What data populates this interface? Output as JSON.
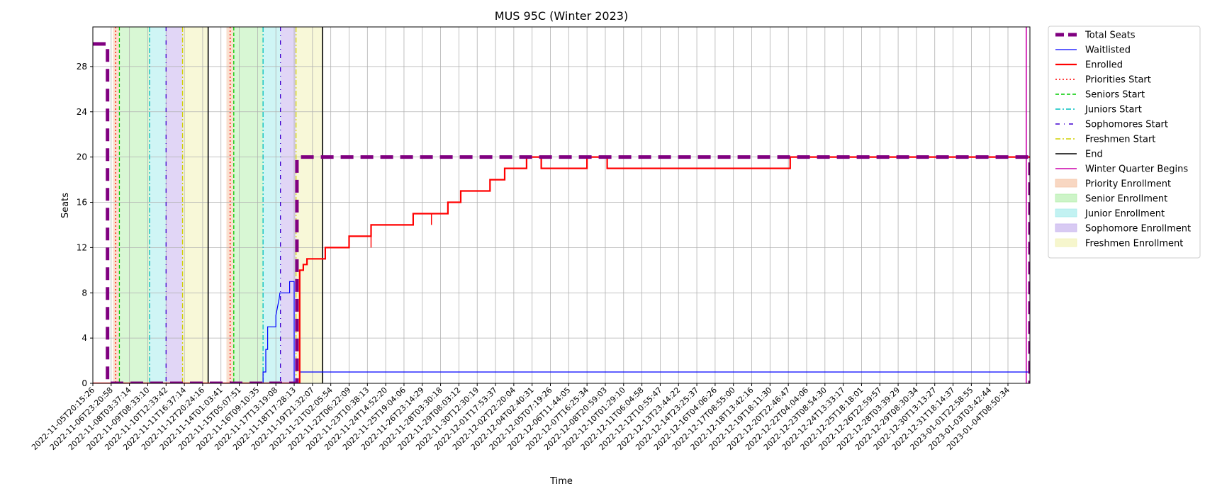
{
  "chart_data": {
    "type": "line",
    "title": "MUS 95C (Winter 2023)",
    "xlabel": "Time",
    "ylabel": "Seats",
    "ylim": [
      0,
      31.5
    ],
    "y_ticks": [
      0,
      4,
      8,
      12,
      16,
      20,
      24,
      28
    ],
    "grid": true,
    "legend_placement": "outside-right-top",
    "x_ticks": [
      "2022-11-05T20:15:26",
      "2022-11-06T23:20:58",
      "2022-11-08T03:37:14",
      "2022-11-09T08:33:10",
      "2022-11-10T12:33:42",
      "2022-11-11T16:37:14",
      "2022-11-12T20:24:16",
      "2022-11-14T01:03:41",
      "2022-11-15T05:07:51",
      "2022-11-16T09:10:35",
      "2022-11-17T13:19:08",
      "2022-11-18T17:28:13",
      "2022-11-19T21:32:07",
      "2022-11-21T02:05:54",
      "2022-11-22T06:22:09",
      "2022-11-23T10:38:13",
      "2022-11-24T14:52:20",
      "2022-11-25T19:04:06",
      "2022-11-26T23:14:29",
      "2022-11-28T03:30:18",
      "2022-11-29T08:03:12",
      "2022-11-30T12:30:19",
      "2022-12-01T17:53:37",
      "2022-12-02T22:20:04",
      "2022-12-04T02:40:31",
      "2022-12-05T07:19:26",
      "2022-12-06T11:44:05",
      "2022-12-07T16:25:34",
      "2022-12-08T20:59:03",
      "2022-12-10T01:29:10",
      "2022-12-11T06:04:58",
      "2022-12-12T10:55:47",
      "2022-12-13T23:44:22",
      "2022-12-14T23:25:37",
      "2022-12-16T04:06:26",
      "2022-12-17T08:55:00",
      "2022-12-18T13:42:16",
      "2022-12-19T18:11:30",
      "2022-12-20T22:46:47",
      "2022-12-22T04:04:06",
      "2022-12-23T08:54:30",
      "2022-12-24T13:33:17",
      "2022-12-25T18:18:01",
      "2022-12-26T22:59:57",
      "2022-12-28T03:39:29",
      "2022-12-29T08:30:34",
      "2022-12-30T13:13:27",
      "2022-12-31T18:14:37",
      "2023-01-01T22:58:55",
      "2023-01-03T03:42:44",
      "2023-01-04T08:50:34"
    ],
    "x_range": [
      0,
      51.2
    ],
    "series": [
      {
        "name": "Total Seats",
        "color": "#800080",
        "style": "dashed-thick",
        "x": [
          0,
          0.8,
          0.8,
          11.15,
          11.15,
          51.2,
          51.2
        ],
        "y": [
          30,
          30,
          0,
          0,
          20,
          20,
          0
        ]
      },
      {
        "name": "Waitlisted",
        "color": "#0000ff",
        "style": "solid-thin",
        "x": [
          0,
          9.3,
          9.3,
          9.45,
          9.45,
          9.55,
          9.55,
          10.0,
          10.0,
          10.12,
          10.18,
          10.22,
          10.25,
          10.75,
          10.75,
          11.0,
          11.0,
          11.3,
          11.3,
          45.0,
          45.0,
          51.2
        ],
        "y": [
          0,
          0,
          1,
          1,
          3,
          3,
          5,
          5,
          6,
          7,
          7.5,
          8,
          8,
          8,
          9,
          9,
          0,
          0,
          1,
          1,
          1,
          1
        ]
      },
      {
        "name": "Enrolled",
        "color": "#ff0000",
        "style": "solid-thick",
        "x": [
          0,
          11.3,
          11.3,
          11.5,
          11.5,
          11.7,
          11.7,
          12.7,
          12.7,
          14.0,
          14.0,
          15.2,
          15.2,
          17.5,
          17.5,
          19.4,
          19.4,
          20.1,
          20.1,
          21.7,
          21.7,
          22.5,
          22.5,
          23.7,
          23.7,
          24.5,
          24.5,
          27.0,
          27.0,
          28.1,
          28.1,
          38.1,
          38.1,
          39.5,
          39.5,
          51.2
        ],
        "y": [
          0,
          0,
          10,
          10,
          10.5,
          10.5,
          11,
          11,
          12,
          12,
          13,
          13,
          14,
          14,
          15,
          15,
          16,
          16,
          17,
          17,
          18,
          18,
          19,
          19,
          20,
          20,
          19,
          19,
          20,
          20,
          19,
          19,
          20,
          20,
          20,
          20
        ]
      }
    ],
    "vertical_lines": [
      {
        "name": "Priorities Start",
        "color": "#ff0000",
        "x": [
          1.25,
          7.5
        ]
      },
      {
        "name": "Seniors Start",
        "color": "#00cc00",
        "x": [
          1.45,
          7.7
        ]
      },
      {
        "name": "Juniors Start",
        "color": "#00bfbf",
        "x": [
          3.1,
          9.3
        ]
      },
      {
        "name": "Sophomores Start",
        "color": "#4000d0",
        "x": [
          4.0,
          10.25
        ]
      },
      {
        "name": "Freshmen Start",
        "color": "#d0d000",
        "x": [
          4.9,
          11.1
        ]
      },
      {
        "name": "End",
        "color": "#000000",
        "x": [
          6.3,
          12.55
        ]
      },
      {
        "name": "Winter Quarter Begins",
        "color": "#cc00aa",
        "x": [
          51.0
        ]
      }
    ],
    "spans": [
      {
        "name": "Priority Enrollment",
        "color": "#f5c6a8",
        "ranges": [
          [
            1.1,
            1.45
          ],
          [
            7.3,
            7.7
          ]
        ]
      },
      {
        "name": "Senior Enrollment",
        "color": "#b8f0b0",
        "ranges": [
          [
            1.45,
            3.1
          ],
          [
            7.7,
            9.3
          ]
        ]
      },
      {
        "name": "Junior Enrollment",
        "color": "#a8ecec",
        "ranges": [
          [
            3.1,
            4.0
          ],
          [
            9.3,
            10.25
          ]
        ]
      },
      {
        "name": "Sophomore Enrollment",
        "color": "#c8b4ee",
        "ranges": [
          [
            4.0,
            4.9
          ],
          [
            10.25,
            11.1
          ]
        ]
      },
      {
        "name": "Freshmen Enrollment",
        "color": "#f2f2b8",
        "ranges": [
          [
            4.9,
            6.3
          ],
          [
            11.1,
            12.55
          ]
        ]
      }
    ],
    "spikes": [
      {
        "series": "Enrolled",
        "x": 15.2,
        "y_from": 13,
        "y_to": 12
      },
      {
        "series": "Enrolled",
        "x": 18.5,
        "y_from": 14,
        "y_to": 15
      }
    ],
    "legend": [
      "Total Seats",
      "Waitlisted",
      "Enrolled",
      "Priorities Start",
      "Seniors Start",
      "Juniors Start",
      "Sophomores Start",
      "Freshmen Start",
      "End",
      "Winter Quarter Begins",
      "Priority Enrollment",
      "Senior Enrollment",
      "Junior Enrollment",
      "Sophomore Enrollment",
      "Freshmen Enrollment"
    ]
  }
}
